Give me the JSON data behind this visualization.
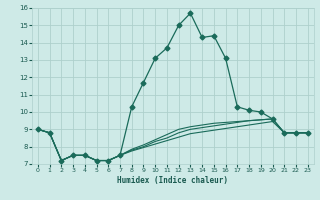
{
  "xlabel": "Humidex (Indice chaleur)",
  "bg_color": "#ceeae7",
  "grid_color": "#aed0cc",
  "line_color": "#1a6b5a",
  "xlim": [
    -0.5,
    23.5
  ],
  "ylim": [
    7,
    16
  ],
  "xticks": [
    0,
    1,
    2,
    3,
    4,
    5,
    6,
    7,
    8,
    9,
    10,
    11,
    12,
    13,
    14,
    15,
    16,
    17,
    18,
    19,
    20,
    21,
    22,
    23
  ],
  "yticks": [
    7,
    8,
    9,
    10,
    11,
    12,
    13,
    14,
    15,
    16
  ],
  "series": [
    {
      "x": [
        0,
        1,
        2,
        3,
        4,
        5,
        6,
        7,
        8,
        9,
        10,
        11,
        12,
        13,
        14,
        15,
        16,
        17,
        18,
        19,
        20,
        21,
        22,
        23
      ],
      "y": [
        9.0,
        8.8,
        7.2,
        7.5,
        7.5,
        7.2,
        7.2,
        7.5,
        10.3,
        11.7,
        13.1,
        13.7,
        15.0,
        15.7,
        14.3,
        14.4,
        13.1,
        10.3,
        10.1,
        10.0,
        9.6,
        8.8,
        8.8,
        8.8
      ],
      "marker": "D",
      "markersize": 2.5,
      "linewidth": 0.9
    },
    {
      "x": [
        0,
        1,
        2,
        3,
        4,
        5,
        6,
        7,
        8,
        9,
        10,
        11,
        12,
        13,
        14,
        15,
        16,
        17,
        18,
        19,
        20,
        21,
        22,
        23
      ],
      "y": [
        9.0,
        8.8,
        7.2,
        7.5,
        7.5,
        7.2,
        7.2,
        7.5,
        7.8,
        8.0,
        8.3,
        8.5,
        8.8,
        9.0,
        9.1,
        9.2,
        9.3,
        9.4,
        9.5,
        9.55,
        9.6,
        8.8,
        8.8,
        8.8
      ],
      "marker": null,
      "markersize": 0,
      "linewidth": 0.8
    },
    {
      "x": [
        0,
        1,
        2,
        3,
        4,
        5,
        6,
        7,
        8,
        9,
        10,
        11,
        12,
        13,
        14,
        15,
        16,
        17,
        18,
        19,
        20,
        21,
        22,
        23
      ],
      "y": [
        9.0,
        8.8,
        7.2,
        7.5,
        7.5,
        7.2,
        7.2,
        7.5,
        7.85,
        8.1,
        8.4,
        8.7,
        9.0,
        9.15,
        9.25,
        9.35,
        9.4,
        9.45,
        9.5,
        9.55,
        9.6,
        8.8,
        8.8,
        8.8
      ],
      "marker": null,
      "markersize": 0,
      "linewidth": 0.8
    },
    {
      "x": [
        0,
        1,
        2,
        3,
        4,
        5,
        6,
        7,
        8,
        9,
        10,
        11,
        12,
        13,
        14,
        15,
        16,
        17,
        18,
        19,
        20,
        21,
        22,
        23
      ],
      "y": [
        9.0,
        8.8,
        7.2,
        7.5,
        7.5,
        7.2,
        7.2,
        7.5,
        7.75,
        7.95,
        8.15,
        8.35,
        8.55,
        8.75,
        8.85,
        8.95,
        9.05,
        9.15,
        9.25,
        9.35,
        9.45,
        8.8,
        8.8,
        8.8
      ],
      "marker": null,
      "markersize": 0,
      "linewidth": 0.8
    }
  ]
}
